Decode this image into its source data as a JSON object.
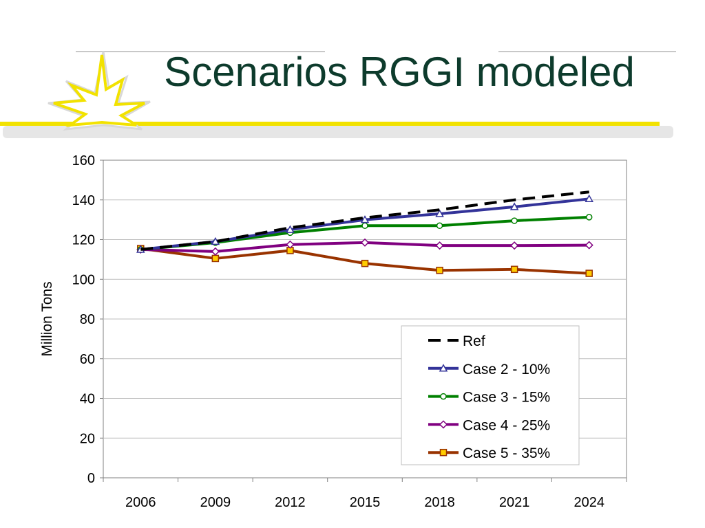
{
  "slide": {
    "title": "Scenarios RGGI modeled"
  },
  "colors": {
    "title": "#0d3b2c",
    "decor_yellow": "#f2e200",
    "decor_gray": "#c8c8c8"
  },
  "chart_data": {
    "type": "line",
    "title": "",
    "xlabel": "",
    "ylabel": "Million Tons",
    "categories": [
      "2006",
      "2009",
      "2012",
      "2015",
      "2018",
      "2021",
      "2024"
    ],
    "ylim": [
      0,
      160
    ],
    "yticks": [
      "0",
      "20",
      "40",
      "60",
      "80",
      "100",
      "120",
      "140",
      "160"
    ],
    "grid": true,
    "legend_position": "bottom-right",
    "series": [
      {
        "name": "Ref",
        "values": [
          115,
          119,
          126,
          131,
          135,
          140,
          144
        ],
        "color": "#000000",
        "dash": true,
        "marker": "none"
      },
      {
        "name": "Case 2 - 10%",
        "values": [
          115,
          119,
          125,
          130,
          133,
          136.5,
          140.5
        ],
        "color": "#333399",
        "dash": false,
        "marker": "triangle"
      },
      {
        "name": "Case 3 - 15%",
        "values": [
          115,
          118.5,
          123.5,
          127,
          127,
          129.5,
          131.3
        ],
        "color": "#008000",
        "dash": false,
        "marker": "circle"
      },
      {
        "name": "Case 4 - 25%",
        "values": [
          115,
          114,
          117.5,
          118.5,
          117,
          117,
          117.2
        ],
        "color": "#800080",
        "dash": false,
        "marker": "diamond"
      },
      {
        "name": "Case 5 - 35%",
        "values": [
          115.5,
          110.5,
          114.5,
          108,
          104.5,
          105,
          103
        ],
        "color": "#993300",
        "dash": false,
        "marker": "square"
      }
    ]
  }
}
